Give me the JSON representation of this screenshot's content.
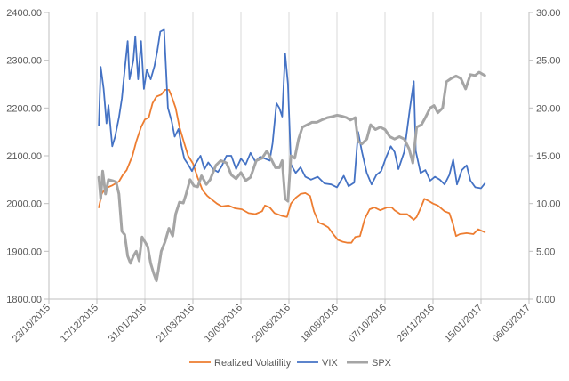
{
  "chart_data": {
    "type": "line",
    "title": "",
    "legend_position": "bottom",
    "grid": "vertical",
    "x_axis": {
      "type": "date",
      "ticks": [
        "23/10/2015",
        "12/12/2015",
        "31/01/2016",
        "21/03/2016",
        "10/05/2016",
        "29/06/2016",
        "18/08/2016",
        "07/10/2016",
        "26/11/2016",
        "15/01/2017",
        "06/03/2017"
      ],
      "min": "23/10/2015",
      "max": "06/03/2017"
    },
    "y_left": {
      "min": 1800,
      "max": 2400,
      "step": 100,
      "ticks": [
        "1800.00",
        "1900.00",
        "2000.00",
        "2100.00",
        "2200.00",
        "2300.00",
        "2400.00"
      ]
    },
    "y_right": {
      "min": 0,
      "max": 30,
      "step": 5,
      "ticks": [
        "0.00",
        "5.00",
        "10.00",
        "15.00",
        "20.00",
        "25.00",
        "30.00"
      ]
    },
    "series": [
      {
        "name": "Realized Volatility",
        "axis": "right",
        "color": "#ED7D31",
        "points": [
          [
            "2015-12-14",
            9.6
          ],
          [
            "2015-12-17",
            11.0
          ],
          [
            "2015-12-21",
            11.6
          ],
          [
            "2015-12-28",
            11.9
          ],
          [
            "2016-01-04",
            12.3
          ],
          [
            "2016-01-08",
            13.0
          ],
          [
            "2016-01-12",
            13.5
          ],
          [
            "2016-01-18",
            15.0
          ],
          [
            "2016-01-22",
            16.5
          ],
          [
            "2016-01-27",
            18.0
          ],
          [
            "2016-01-31",
            18.8
          ],
          [
            "2016-02-04",
            19.0
          ],
          [
            "2016-02-08",
            20.5
          ],
          [
            "2016-02-12",
            21.2
          ],
          [
            "2016-02-17",
            21.4
          ],
          [
            "2016-02-21",
            21.9
          ],
          [
            "2016-02-25",
            21.9
          ],
          [
            "2016-02-28",
            21.2
          ],
          [
            "2016-03-03",
            20.0
          ],
          [
            "2016-03-07",
            18.0
          ],
          [
            "2016-03-12",
            16.3
          ],
          [
            "2016-03-16",
            15.0
          ],
          [
            "2016-03-21",
            14.2
          ],
          [
            "2016-03-26",
            12.7
          ],
          [
            "2016-03-31",
            11.4
          ],
          [
            "2016-04-05",
            10.8
          ],
          [
            "2016-04-10",
            10.4
          ],
          [
            "2016-04-15",
            10.0
          ],
          [
            "2016-04-20",
            9.7
          ],
          [
            "2016-04-27",
            9.8
          ],
          [
            "2016-05-04",
            9.5
          ],
          [
            "2016-05-11",
            9.4
          ],
          [
            "2016-05-18",
            9.0
          ],
          [
            "2016-05-25",
            8.9
          ],
          [
            "2016-06-01",
            9.2
          ],
          [
            "2016-06-04",
            9.8
          ],
          [
            "2016-06-09",
            9.6
          ],
          [
            "2016-06-14",
            9.0
          ],
          [
            "2016-06-22",
            8.7
          ],
          [
            "2016-06-27",
            8.6
          ],
          [
            "2016-07-01",
            10.0
          ],
          [
            "2016-07-06",
            10.6
          ],
          [
            "2016-07-11",
            11.0
          ],
          [
            "2016-07-16",
            11.1
          ],
          [
            "2016-07-21",
            10.8
          ],
          [
            "2016-07-25",
            9.2
          ],
          [
            "2016-07-30",
            8.0
          ],
          [
            "2016-08-04",
            7.8
          ],
          [
            "2016-08-09",
            7.5
          ],
          [
            "2016-08-14",
            6.8
          ],
          [
            "2016-08-19",
            6.2
          ],
          [
            "2016-08-24",
            6.0
          ],
          [
            "2016-08-29",
            5.9
          ],
          [
            "2016-09-02",
            5.9
          ],
          [
            "2016-09-06",
            6.5
          ],
          [
            "2016-09-11",
            6.6
          ],
          [
            "2016-09-16",
            8.4
          ],
          [
            "2016-09-21",
            9.4
          ],
          [
            "2016-09-26",
            9.6
          ],
          [
            "2016-10-02",
            9.3
          ],
          [
            "2016-10-09",
            9.6
          ],
          [
            "2016-10-14",
            9.6
          ],
          [
            "2016-10-17",
            9.3
          ],
          [
            "2016-10-23",
            8.9
          ],
          [
            "2016-10-30",
            8.9
          ],
          [
            "2016-11-06",
            8.3
          ],
          [
            "2016-11-09",
            8.6
          ],
          [
            "2016-11-13",
            9.5
          ],
          [
            "2016-11-17",
            10.5
          ],
          [
            "2016-11-21",
            10.3
          ],
          [
            "2016-11-26",
            10.0
          ],
          [
            "2016-12-01",
            9.8
          ],
          [
            "2016-12-08",
            9.2
          ],
          [
            "2016-12-13",
            9.0
          ],
          [
            "2016-12-17",
            7.8
          ],
          [
            "2016-12-20",
            6.6
          ],
          [
            "2016-12-24",
            6.8
          ],
          [
            "2016-12-31",
            6.9
          ],
          [
            "2017-01-07",
            6.8
          ],
          [
            "2017-01-12",
            7.3
          ],
          [
            "2017-01-19",
            7.0
          ]
        ]
      },
      {
        "name": "VIX",
        "axis": "right",
        "color": "#4472C4",
        "points": [
          [
            "2015-12-14",
            18.2
          ],
          [
            "2015-12-16",
            24.3
          ],
          [
            "2015-12-19",
            22.0
          ],
          [
            "2015-12-22",
            18.4
          ],
          [
            "2015-12-24",
            20.3
          ],
          [
            "2015-12-28",
            16.0
          ],
          [
            "2015-12-31",
            17.0
          ],
          [
            "2016-01-04",
            19.0
          ],
          [
            "2016-01-07",
            21.0
          ],
          [
            "2016-01-10",
            24.0
          ],
          [
            "2016-01-13",
            27.0
          ],
          [
            "2016-01-15",
            23.0
          ],
          [
            "2016-01-19",
            25.0
          ],
          [
            "2016-01-21",
            27.5
          ],
          [
            "2016-01-24",
            23.0
          ],
          [
            "2016-01-27",
            27.0
          ],
          [
            "2016-01-30",
            22.0
          ],
          [
            "2016-02-02",
            24.0
          ],
          [
            "2016-02-06",
            23.0
          ],
          [
            "2016-02-10",
            24.4
          ],
          [
            "2016-02-13",
            26.0
          ],
          [
            "2016-02-16",
            28.0
          ],
          [
            "2016-02-20",
            28.2
          ],
          [
            "2016-02-24",
            20.0
          ],
          [
            "2016-02-28",
            18.6
          ],
          [
            "2016-03-02",
            17.0
          ],
          [
            "2016-03-06",
            17.8
          ],
          [
            "2016-03-09",
            16.1
          ],
          [
            "2016-03-12",
            14.7
          ],
          [
            "2016-03-16",
            14.1
          ],
          [
            "2016-03-20",
            13.4
          ],
          [
            "2016-03-24",
            14.2
          ],
          [
            "2016-03-29",
            15.0
          ],
          [
            "2016-04-02",
            13.6
          ],
          [
            "2016-04-06",
            14.3
          ],
          [
            "2016-04-11",
            13.6
          ],
          [
            "2016-04-16",
            13.3
          ],
          [
            "2016-04-20",
            13.9
          ],
          [
            "2016-04-25",
            15.0
          ],
          [
            "2016-04-30",
            15.0
          ],
          [
            "2016-05-05",
            13.6
          ],
          [
            "2016-05-10",
            14.7
          ],
          [
            "2016-05-15",
            14.1
          ],
          [
            "2016-05-20",
            15.3
          ],
          [
            "2016-05-25",
            14.4
          ],
          [
            "2016-05-30",
            14.9
          ],
          [
            "2016-06-04",
            14.7
          ],
          [
            "2016-06-09",
            14.5
          ],
          [
            "2016-06-12",
            16.3
          ],
          [
            "2016-06-16",
            20.5
          ],
          [
            "2016-06-19",
            20.0
          ],
          [
            "2016-06-22",
            19.1
          ],
          [
            "2016-06-25",
            25.7
          ],
          [
            "2016-06-28",
            22.5
          ],
          [
            "2016-07-01",
            14.1
          ],
          [
            "2016-07-06",
            13.2
          ],
          [
            "2016-07-11",
            13.8
          ],
          [
            "2016-07-16",
            12.8
          ],
          [
            "2016-07-22",
            12.5
          ],
          [
            "2016-07-29",
            12.8
          ],
          [
            "2016-08-05",
            12.1
          ],
          [
            "2016-08-12",
            12.0
          ],
          [
            "2016-08-18",
            11.7
          ],
          [
            "2016-08-25",
            12.9
          ],
          [
            "2016-08-30",
            11.8
          ],
          [
            "2016-09-05",
            12.2
          ],
          [
            "2016-09-09",
            17.5
          ],
          [
            "2016-09-13",
            15.4
          ],
          [
            "2016-09-18",
            13.2
          ],
          [
            "2016-09-23",
            12.0
          ],
          [
            "2016-09-28",
            13.0
          ],
          [
            "2016-10-03",
            13.4
          ],
          [
            "2016-10-08",
            14.8
          ],
          [
            "2016-10-13",
            16.0
          ],
          [
            "2016-10-17",
            15.4
          ],
          [
            "2016-10-21",
            13.6
          ],
          [
            "2016-10-27",
            15.4
          ],
          [
            "2016-11-02",
            20.0
          ],
          [
            "2016-11-06",
            22.8
          ],
          [
            "2016-11-08",
            15.5
          ],
          [
            "2016-11-13",
            13.2
          ],
          [
            "2016-11-18",
            13.5
          ],
          [
            "2016-11-23",
            12.4
          ],
          [
            "2016-11-28",
            12.8
          ],
          [
            "2016-12-03",
            12.5
          ],
          [
            "2016-12-08",
            12.0
          ],
          [
            "2016-12-13",
            13.0
          ],
          [
            "2016-12-17",
            14.6
          ],
          [
            "2016-12-21",
            12.0
          ],
          [
            "2016-12-26",
            13.5
          ],
          [
            "2016-12-31",
            14.0
          ],
          [
            "2017-01-04",
            12.4
          ],
          [
            "2017-01-09",
            11.7
          ],
          [
            "2017-01-15",
            11.6
          ],
          [
            "2017-01-19",
            12.1
          ]
        ]
      },
      {
        "name": "SPX",
        "axis": "left",
        "color": "#A5A5A5",
        "points": [
          [
            "2015-12-14",
            2055
          ],
          [
            "2015-12-16",
            2010
          ],
          [
            "2015-12-18",
            2068
          ],
          [
            "2015-12-21",
            2020
          ],
          [
            "2015-12-24",
            2050
          ],
          [
            "2015-12-28",
            2048
          ],
          [
            "2016-01-01",
            2045
          ],
          [
            "2016-01-04",
            2020
          ],
          [
            "2016-01-07",
            1942
          ],
          [
            "2016-01-10",
            1935
          ],
          [
            "2016-01-13",
            1890
          ],
          [
            "2016-01-16",
            1875
          ],
          [
            "2016-01-19",
            1890
          ],
          [
            "2016-01-22",
            1900
          ],
          [
            "2016-01-25",
            1880
          ],
          [
            "2016-01-28",
            1930
          ],
          [
            "2016-01-31",
            1920
          ],
          [
            "2016-02-03",
            1910
          ],
          [
            "2016-02-06",
            1875
          ],
          [
            "2016-02-09",
            1855
          ],
          [
            "2016-02-12",
            1838
          ],
          [
            "2016-02-14",
            1860
          ],
          [
            "2016-02-17",
            1900
          ],
          [
            "2016-02-21",
            1920
          ],
          [
            "2016-02-25",
            1948
          ],
          [
            "2016-02-29",
            1932
          ],
          [
            "2016-03-03",
            1978
          ],
          [
            "2016-03-07",
            2003
          ],
          [
            "2016-03-11",
            2001
          ],
          [
            "2016-03-14",
            2020
          ],
          [
            "2016-03-18",
            2050
          ],
          [
            "2016-03-22",
            2037
          ],
          [
            "2016-03-26",
            2035
          ],
          [
            "2016-03-30",
            2058
          ],
          [
            "2016-04-04",
            2040
          ],
          [
            "2016-04-08",
            2050
          ],
          [
            "2016-04-14",
            2080
          ],
          [
            "2016-04-19",
            2090
          ],
          [
            "2016-04-25",
            2085
          ],
          [
            "2016-04-30",
            2060
          ],
          [
            "2016-05-05",
            2052
          ],
          [
            "2016-05-10",
            2065
          ],
          [
            "2016-05-15",
            2048
          ],
          [
            "2016-05-20",
            2055
          ],
          [
            "2016-05-26",
            2090
          ],
          [
            "2016-06-01",
            2095
          ],
          [
            "2016-06-06",
            2110
          ],
          [
            "2016-06-10",
            2095
          ],
          [
            "2016-06-15",
            2075
          ],
          [
            "2016-06-19",
            2075
          ],
          [
            "2016-06-22",
            2090
          ],
          [
            "2016-06-25",
            2010
          ],
          [
            "2016-06-28",
            2005
          ],
          [
            "2016-07-01",
            2100
          ],
          [
            "2016-07-05",
            2095
          ],
          [
            "2016-07-09",
            2135
          ],
          [
            "2016-07-13",
            2160
          ],
          [
            "2016-07-18",
            2165
          ],
          [
            "2016-07-23",
            2170
          ],
          [
            "2016-07-28",
            2170
          ],
          [
            "2016-08-02",
            2175
          ],
          [
            "2016-08-08",
            2180
          ],
          [
            "2016-08-13",
            2182
          ],
          [
            "2016-08-18",
            2185
          ],
          [
            "2016-08-23",
            2183
          ],
          [
            "2016-08-28",
            2180
          ],
          [
            "2016-09-01",
            2175
          ],
          [
            "2016-09-06",
            2180
          ],
          [
            "2016-09-09",
            2130
          ],
          [
            "2016-09-13",
            2125
          ],
          [
            "2016-09-18",
            2135
          ],
          [
            "2016-09-22",
            2165
          ],
          [
            "2016-09-27",
            2155
          ],
          [
            "2016-10-02",
            2160
          ],
          [
            "2016-10-07",
            2155
          ],
          [
            "2016-10-12",
            2140
          ],
          [
            "2016-10-17",
            2135
          ],
          [
            "2016-10-22",
            2140
          ],
          [
            "2016-10-27",
            2135
          ],
          [
            "2016-11-01",
            2115
          ],
          [
            "2016-11-05",
            2085
          ],
          [
            "2016-11-09",
            2160
          ],
          [
            "2016-11-14",
            2165
          ],
          [
            "2016-11-18",
            2180
          ],
          [
            "2016-11-23",
            2200
          ],
          [
            "2016-11-27",
            2205
          ],
          [
            "2016-12-01",
            2190
          ],
          [
            "2016-12-06",
            2200
          ],
          [
            "2016-12-10",
            2255
          ],
          [
            "2016-12-15",
            2262
          ],
          [
            "2016-12-20",
            2267
          ],
          [
            "2016-12-25",
            2262
          ],
          [
            "2016-12-30",
            2240
          ],
          [
            "2017-01-04",
            2270
          ],
          [
            "2017-01-09",
            2268
          ],
          [
            "2017-01-13",
            2275
          ],
          [
            "2017-01-19",
            2268
          ]
        ]
      }
    ]
  }
}
